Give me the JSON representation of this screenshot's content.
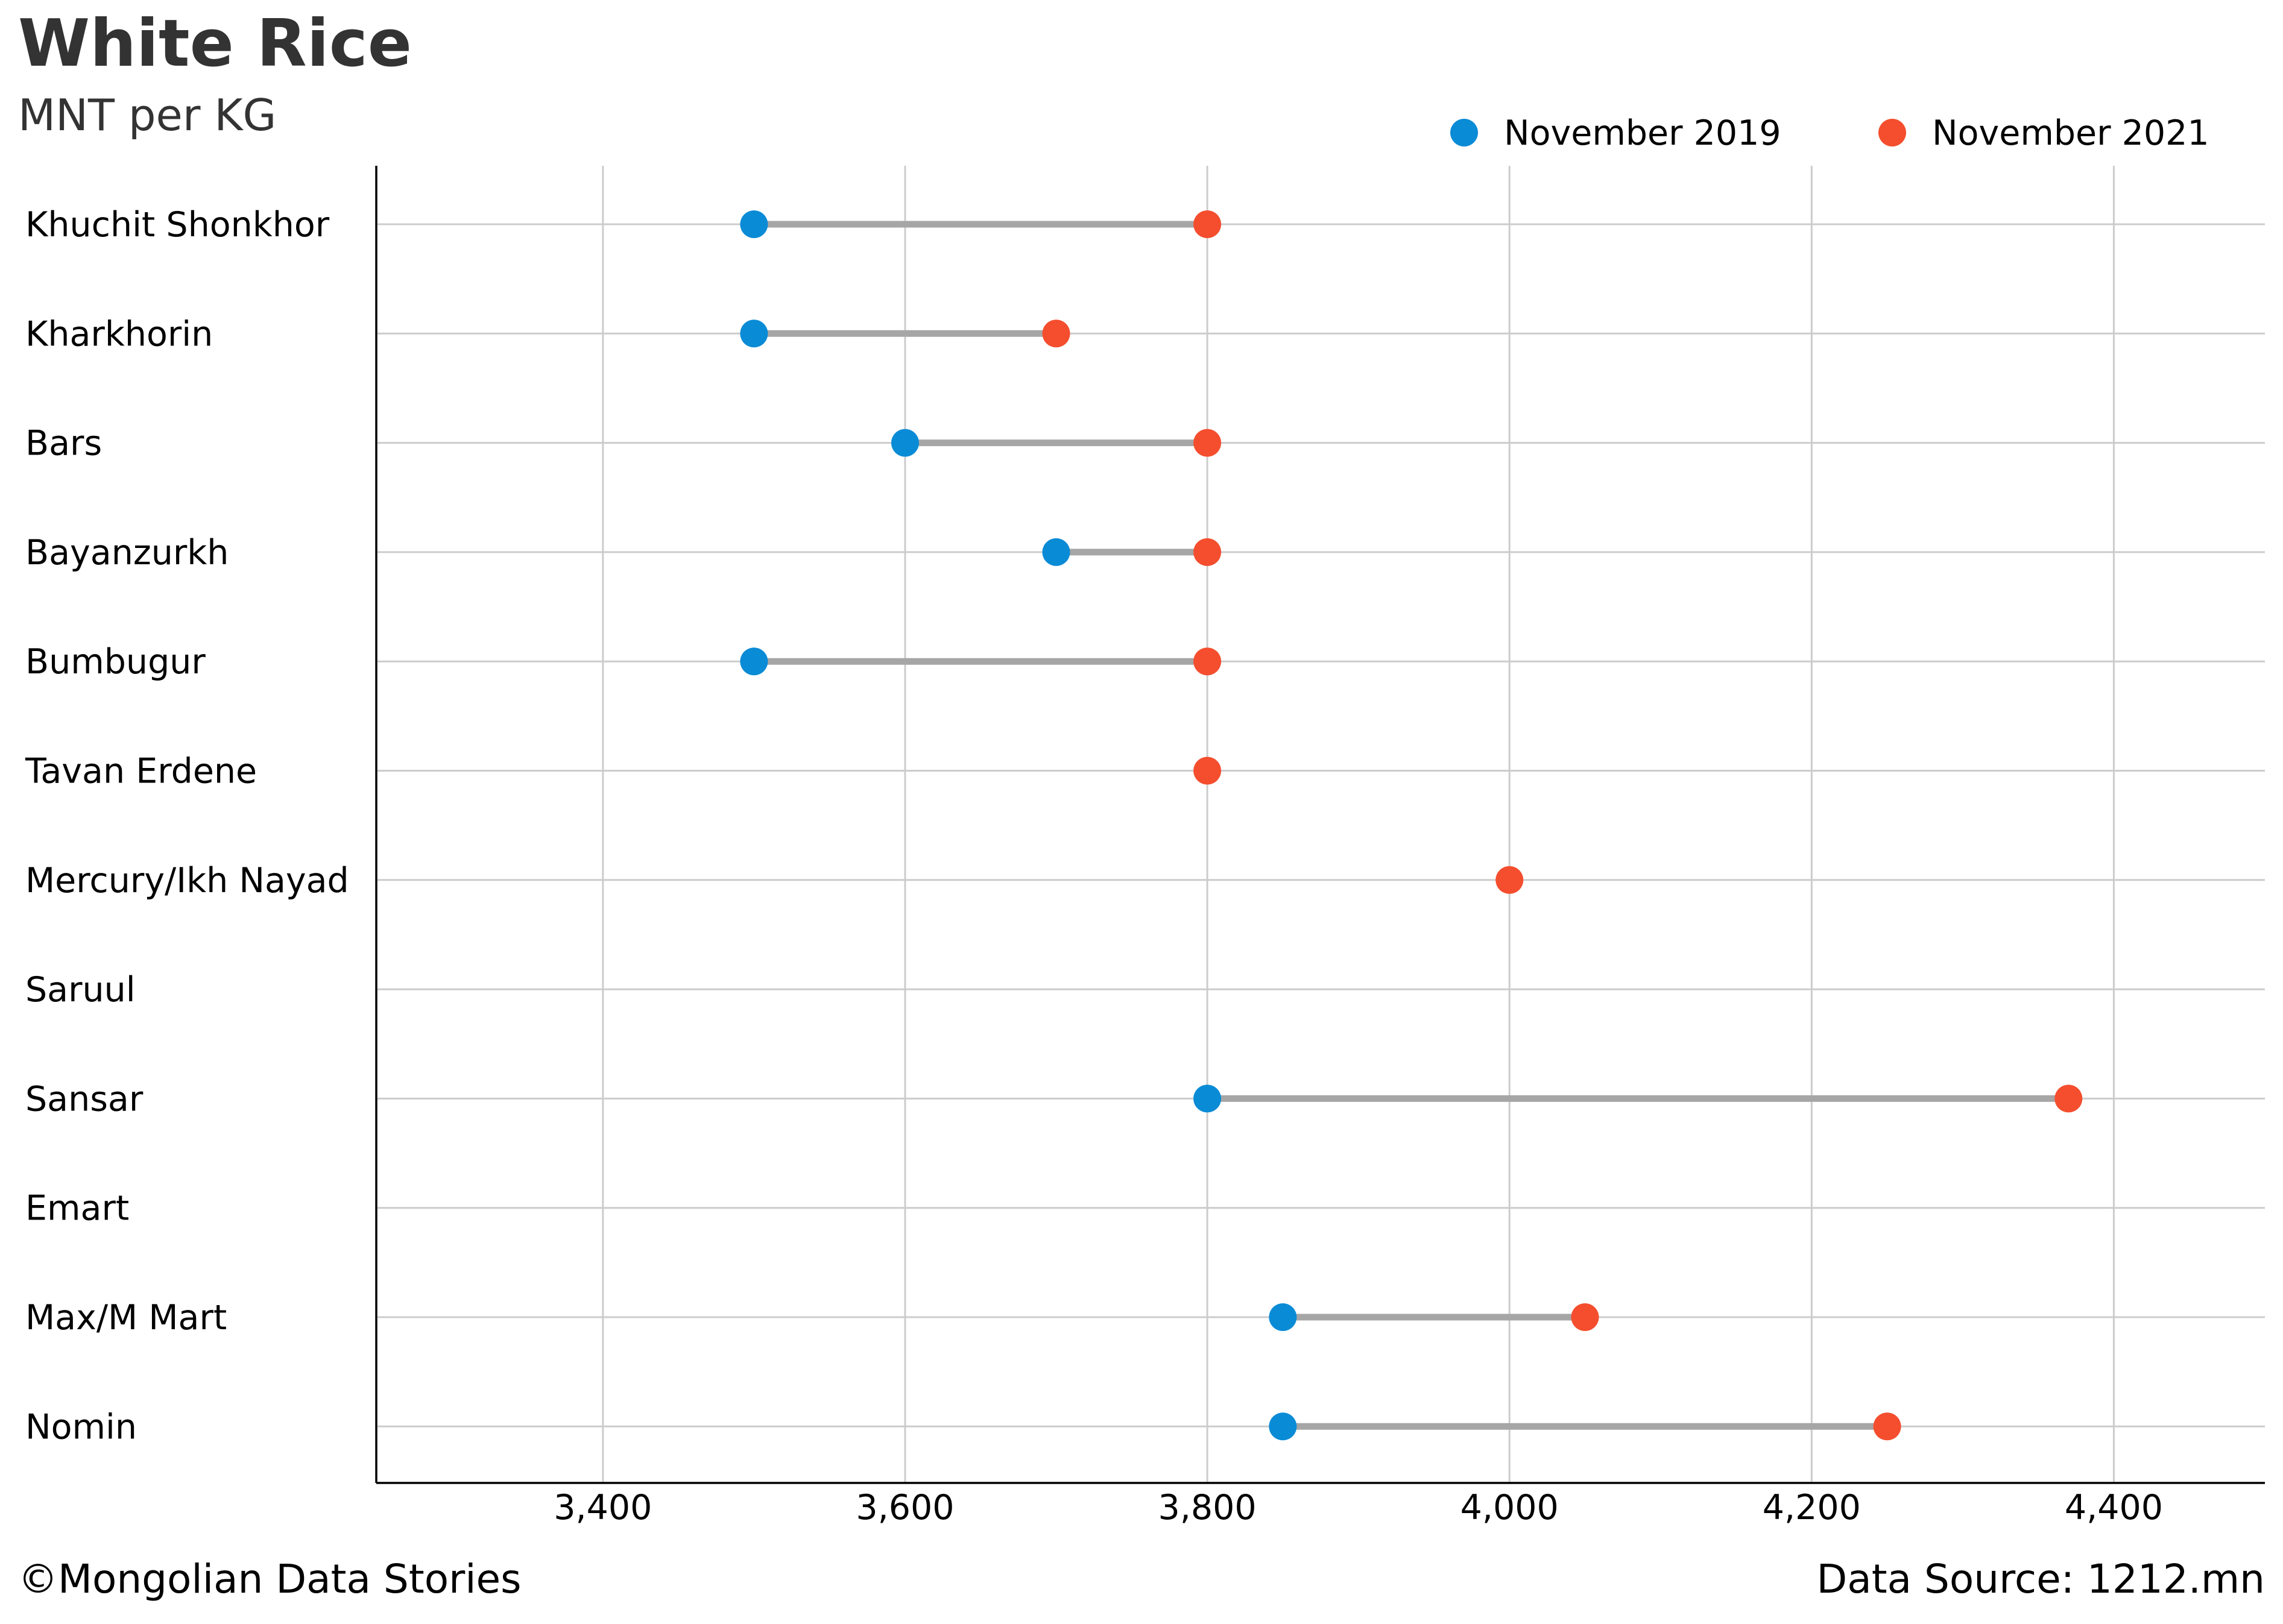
{
  "title": "White Rice",
  "subtitle": "MNT per KG",
  "footer": {
    "credit": "©Mongolian Data Stories",
    "source": "Data Source: 1212.mn"
  },
  "colors": {
    "series_2019": "#0a8bd6",
    "series_2021": "#f44e2e",
    "connector": "#a6a6a6",
    "grid": "#cccccc",
    "axis": "#000000"
  },
  "chart_data": {
    "type": "dumbbell",
    "title": "White Rice",
    "subtitle": "MNT per KG",
    "xlim": [
      3250,
      4500
    ],
    "x_ticks": [
      3400,
      3600,
      3800,
      4000,
      4200,
      4400
    ],
    "x_tick_labels": [
      "3,400",
      "3,600",
      "3,800",
      "4,000",
      "4,200",
      "4,400"
    ],
    "grid": true,
    "legend_position": "top-right",
    "categories": [
      "Khuchit Shonkhor",
      "Kharkhorin",
      "Bars",
      "Bayanzurkh",
      "Bumbugur",
      "Tavan Erdene",
      "Mercury/Ikh Nayad",
      "Saruul",
      "Sansar",
      "Emart",
      "Max/M Mart",
      "Nomin"
    ],
    "series": [
      {
        "name": "November 2019",
        "color": "#0a8bd6",
        "values": [
          3500,
          3500,
          3600,
          3700,
          3500,
          null,
          null,
          null,
          3800,
          null,
          3850,
          3850
        ]
      },
      {
        "name": "November 2021",
        "color": "#f44e2e",
        "values": [
          3800,
          3700,
          3800,
          3800,
          3800,
          3800,
          4000,
          null,
          4370,
          null,
          4050,
          4250
        ]
      }
    ]
  }
}
